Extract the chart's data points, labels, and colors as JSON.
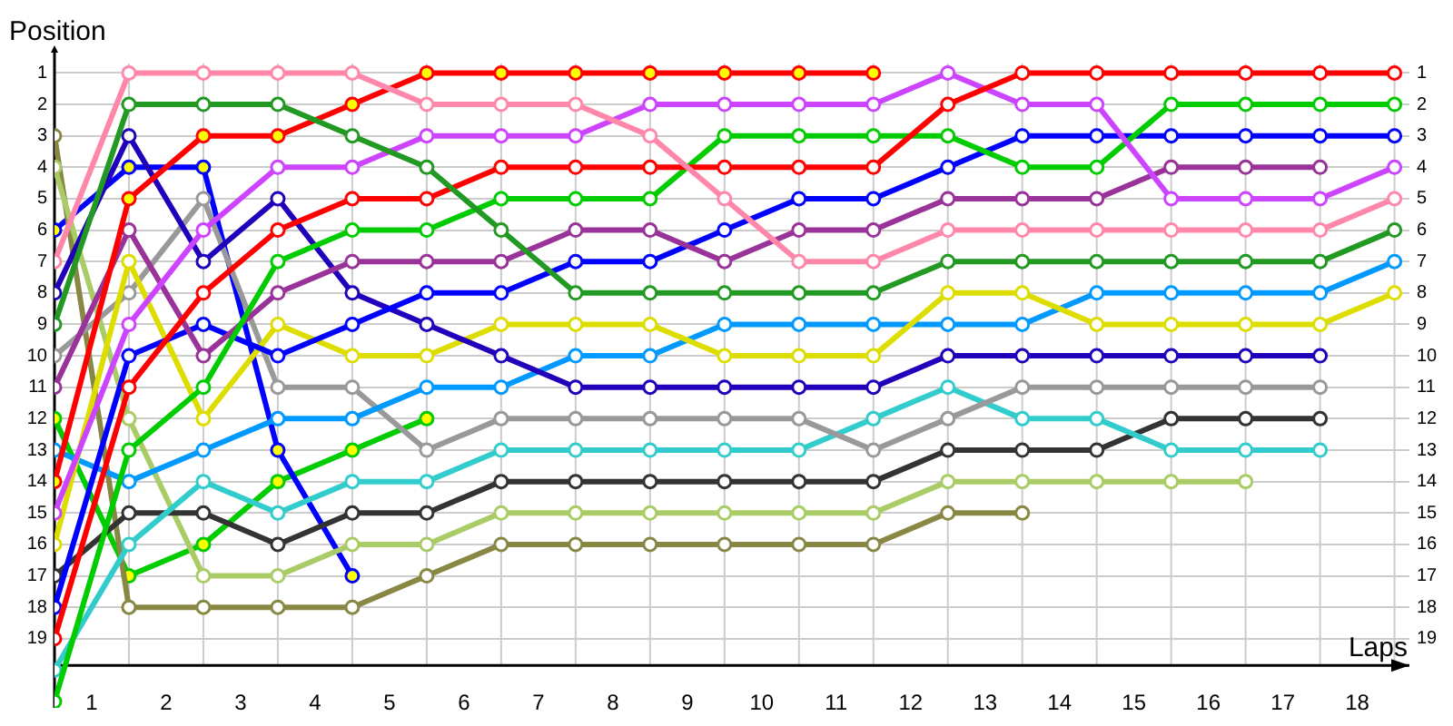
{
  "chart_data": {
    "type": "line",
    "xlabel": "Laps",
    "ylabel": "Position",
    "marker": "circle",
    "grid": true,
    "x": [
      0,
      1,
      2,
      3,
      4,
      5,
      6,
      7,
      8,
      9,
      10,
      11,
      12,
      13,
      14,
      15,
      16,
      17,
      18
    ],
    "xlim": [
      0,
      18.2
    ],
    "xticks": [
      {
        "value": 0.5,
        "label": "1"
      },
      {
        "value": 1,
        "label": null
      },
      {
        "value": 1.5,
        "label": "2"
      },
      {
        "value": 2,
        "label": null
      },
      {
        "value": 2.5,
        "label": "3"
      },
      {
        "value": 3,
        "label": null
      },
      {
        "value": 3.5,
        "label": "4"
      },
      {
        "value": 4,
        "label": null
      },
      {
        "value": 4.5,
        "label": "5"
      },
      {
        "value": 5,
        "label": null
      },
      {
        "value": 5.5,
        "label": "6"
      },
      {
        "value": 6,
        "label": null
      },
      {
        "value": 6.5,
        "label": "7"
      },
      {
        "value": 7,
        "label": null
      },
      {
        "value": 7.5,
        "label": "8"
      },
      {
        "value": 8,
        "label": null
      },
      {
        "value": 8.5,
        "label": "9"
      },
      {
        "value": 9,
        "label": null
      },
      {
        "value": 9.5,
        "label": "10"
      },
      {
        "value": 10,
        "label": null
      },
      {
        "value": 10.5,
        "label": "11"
      },
      {
        "value": 11,
        "label": null
      },
      {
        "value": 11.5,
        "label": "12"
      },
      {
        "value": 12,
        "label": null
      },
      {
        "value": 12.5,
        "label": "13"
      },
      {
        "value": 13,
        "label": null
      },
      {
        "value": 13.5,
        "label": "14"
      },
      {
        "value": 14,
        "label": null
      },
      {
        "value": 14.5,
        "label": "15"
      },
      {
        "value": 15,
        "label": null
      },
      {
        "value": 15.5,
        "label": "16"
      },
      {
        "value": 16,
        "label": null
      },
      {
        "value": 16.5,
        "label": "17"
      },
      {
        "value": 17,
        "label": null
      },
      {
        "value": 17.5,
        "label": "18"
      },
      {
        "value": 18,
        "label": null
      }
    ],
    "ylim": [
      21.2,
      0.7
    ],
    "yticks": [
      1,
      2,
      3,
      4,
      5,
      6,
      7,
      8,
      9,
      10,
      11,
      12,
      13,
      14,
      15,
      16,
      17,
      18,
      19
    ],
    "y2lim": [
      21.2,
      0.7
    ],
    "y2ticks": [
      1,
      2,
      3,
      4,
      5,
      6,
      7,
      8,
      9,
      10,
      11,
      12,
      13,
      14,
      15,
      16,
      17,
      18,
      19
    ],
    "series": [
      {
        "color": "#ff88aa",
        "values": [
          7,
          1,
          1,
          1,
          1,
          2,
          2,
          2,
          3,
          5,
          7,
          7,
          6,
          6,
          6,
          6,
          6,
          6,
          5
        ]
      },
      {
        "color": "#229922",
        "values": [
          9,
          2,
          2,
          2,
          3,
          4,
          6,
          8,
          8,
          8,
          8,
          8,
          7,
          7,
          7,
          7,
          7,
          7,
          6
        ]
      },
      {
        "color": "#ff0000",
        "values": [
          14,
          5,
          3,
          3,
          2,
          1,
          1,
          1,
          1,
          1,
          1,
          1,
          null,
          null,
          null,
          null,
          null,
          null,
          null
        ],
        "colors": [
          "#ffff00",
          "#ffff00",
          "#ffff00",
          "#ffff00",
          "#ffff00",
          "#ffff00",
          "#ffff00",
          "#ffff00",
          "#ffff00",
          "#ffff00",
          "#ffff00",
          "#ffff00",
          null,
          null,
          null,
          null,
          null,
          null,
          null
        ]
      },
      {
        "color": "#ff0000",
        "values": [
          19,
          11,
          8,
          6,
          5,
          5,
          4,
          4,
          4,
          4,
          4,
          4,
          2,
          1,
          1,
          1,
          1,
          1,
          1
        ]
      },
      {
        "color": "#cc44ff",
        "values": [
          15,
          9,
          6,
          4,
          4,
          3,
          3,
          3,
          2,
          2,
          2,
          2,
          1,
          2,
          2,
          5,
          5,
          5,
          4
        ]
      },
      {
        "color": "#00cc00",
        "values": [
          21,
          13,
          11,
          7,
          6,
          6,
          5,
          5,
          5,
          3,
          3,
          3,
          3,
          4,
          4,
          2,
          2,
          2,
          2
        ]
      },
      {
        "color": "#993399",
        "values": [
          11,
          6,
          10,
          8,
          7,
          7,
          7,
          6,
          6,
          7,
          6,
          6,
          5,
          5,
          5,
          4,
          4,
          4,
          null
        ]
      },
      {
        "color": "#0000ff",
        "values": [
          18,
          10,
          9,
          10,
          9,
          8,
          8,
          7,
          7,
          6,
          5,
          5,
          4,
          3,
          3,
          3,
          3,
          3,
          3
        ]
      },
      {
        "color": "#2200bb",
        "values": [
          8,
          3,
          7,
          5,
          8,
          9,
          10,
          11,
          11,
          11,
          11,
          11,
          10,
          10,
          10,
          10,
          10,
          10,
          null
        ]
      },
      {
        "color": "#dddd00",
        "values": [
          16,
          7,
          12,
          9,
          10,
          10,
          9,
          9,
          9,
          10,
          10,
          10,
          8,
          8,
          9,
          9,
          9,
          9,
          8
        ]
      },
      {
        "color": "#0099ff",
        "values": [
          13,
          14,
          13,
          12,
          12,
          11,
          11,
          10,
          10,
          9,
          9,
          9,
          9,
          9,
          8,
          8,
          8,
          8,
          7
        ]
      },
      {
        "color": "#999999",
        "values": [
          10,
          8,
          5,
          11,
          11,
          13,
          12,
          12,
          12,
          12,
          12,
          13,
          12,
          11,
          11,
          11,
          11,
          11,
          null
        ]
      },
      {
        "color": "#33cccc",
        "values": [
          20,
          16,
          14,
          15,
          14,
          14,
          13,
          13,
          13,
          13,
          13,
          12,
          11,
          12,
          12,
          13,
          13,
          13,
          null
        ]
      },
      {
        "color": "#333333",
        "values": [
          17,
          15,
          15,
          16,
          15,
          15,
          14,
          14,
          14,
          14,
          14,
          14,
          13,
          13,
          13,
          12,
          12,
          12,
          null
        ]
      },
      {
        "color": "#aacc66",
        "values": [
          4,
          12,
          17,
          17,
          16,
          16,
          15,
          15,
          15,
          15,
          15,
          15,
          14,
          14,
          14,
          14,
          14,
          null,
          null
        ]
      },
      {
        "color": "#888844",
        "values": [
          3,
          18,
          18,
          18,
          18,
          17,
          16,
          16,
          16,
          16,
          16,
          16,
          15,
          15,
          null,
          null,
          null,
          null,
          null
        ]
      },
      {
        "color": "#0000ff",
        "values": [
          6,
          4,
          4,
          13,
          17,
          null,
          null,
          null,
          null,
          null,
          null,
          null,
          null,
          null,
          null,
          null,
          null,
          null,
          null
        ],
        "colors": [
          "#ffff00",
          "#ffff00",
          "#ffff00",
          "#ffff00",
          "#ffff00",
          null,
          null,
          null,
          null,
          null,
          null,
          null,
          null,
          null,
          null,
          null,
          null,
          null,
          null
        ]
      },
      {
        "color": "#00cc00",
        "values": [
          12,
          17,
          16,
          14,
          13,
          12,
          null,
          null,
          null,
          null,
          null,
          null,
          null,
          null,
          null,
          null,
          null,
          null,
          null
        ],
        "colors": [
          "#ffff00",
          "#ffff00",
          "#ffff00",
          "#ffff00",
          "#ffff00",
          "#ffff00",
          null,
          null,
          null,
          null,
          null,
          null,
          null,
          null,
          null,
          null,
          null,
          null,
          null
        ]
      }
    ]
  }
}
